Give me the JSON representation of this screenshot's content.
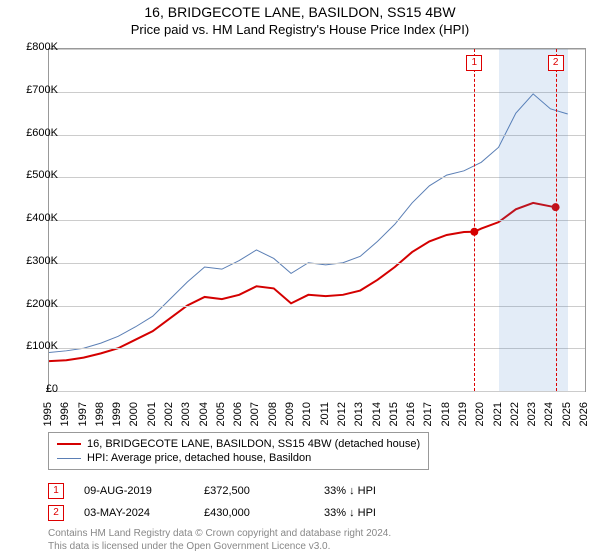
{
  "title_line1": "16, BRIDGECOTE LANE, BASILDON, SS15 4BW",
  "title_line2": "Price paid vs. HM Land Registry's House Price Index (HPI)",
  "chart": {
    "type": "line",
    "x_years": [
      1995,
      1996,
      1997,
      1998,
      1999,
      2000,
      2001,
      2002,
      2003,
      2004,
      2005,
      2006,
      2007,
      2008,
      2009,
      2010,
      2011,
      2012,
      2013,
      2014,
      2015,
      2016,
      2017,
      2018,
      2019,
      2020,
      2021,
      2022,
      2023,
      2024,
      2025,
      2026
    ],
    "ylim": [
      0,
      800000
    ],
    "ytick_step": 100000,
    "ytick_labels": [
      "£0",
      "£100K",
      "£200K",
      "£300K",
      "£400K",
      "£500K",
      "£600K",
      "£700K",
      "£800K"
    ],
    "background_color": "#ffffff",
    "grid_color": "#cccccc",
    "axis_color": "#999999",
    "label_fontsize": 11,
    "title_fontsize": 14,
    "band": {
      "start": 2021,
      "end": 2025,
      "color": "rgba(70,130,200,0.15)"
    },
    "markers": [
      {
        "id": "1",
        "year": 2019.6
      },
      {
        "id": "2",
        "year": 2024.3
      }
    ],
    "series": [
      {
        "name": "price_paid",
        "color": "#d40000",
        "width": 2,
        "legend": "16, BRIDGECOTE LANE, BASILDON, SS15 4BW (detached house)",
        "points": [
          [
            1995,
            70000
          ],
          [
            1996,
            72000
          ],
          [
            1997,
            78000
          ],
          [
            1998,
            88000
          ],
          [
            1999,
            100000
          ],
          [
            2000,
            120000
          ],
          [
            2001,
            140000
          ],
          [
            2002,
            170000
          ],
          [
            2003,
            200000
          ],
          [
            2004,
            220000
          ],
          [
            2005,
            215000
          ],
          [
            2006,
            225000
          ],
          [
            2007,
            245000
          ],
          [
            2008,
            240000
          ],
          [
            2009,
            205000
          ],
          [
            2010,
            225000
          ],
          [
            2011,
            222000
          ],
          [
            2012,
            225000
          ],
          [
            2013,
            235000
          ],
          [
            2014,
            260000
          ],
          [
            2015,
            290000
          ],
          [
            2016,
            325000
          ],
          [
            2017,
            350000
          ],
          [
            2018,
            365000
          ],
          [
            2019,
            372000
          ],
          [
            2019.6,
            372500
          ],
          [
            2020,
            380000
          ],
          [
            2021,
            395000
          ],
          [
            2022,
            425000
          ],
          [
            2023,
            440000
          ],
          [
            2024,
            432000
          ],
          [
            2024.3,
            430000
          ]
        ],
        "highlight_points": [
          {
            "x": 2019.6,
            "y": 372500
          },
          {
            "x": 2024.3,
            "y": 430000
          }
        ]
      },
      {
        "name": "hpi",
        "color": "#5b7fb5",
        "width": 1,
        "legend": "HPI: Average price, detached house, Basildon",
        "points": [
          [
            1995,
            90000
          ],
          [
            1996,
            94000
          ],
          [
            1997,
            100000
          ],
          [
            1998,
            112000
          ],
          [
            1999,
            128000
          ],
          [
            2000,
            150000
          ],
          [
            2001,
            175000
          ],
          [
            2002,
            215000
          ],
          [
            2003,
            255000
          ],
          [
            2004,
            290000
          ],
          [
            2005,
            285000
          ],
          [
            2006,
            305000
          ],
          [
            2007,
            330000
          ],
          [
            2008,
            310000
          ],
          [
            2009,
            275000
          ],
          [
            2010,
            300000
          ],
          [
            2011,
            295000
          ],
          [
            2012,
            300000
          ],
          [
            2013,
            315000
          ],
          [
            2014,
            350000
          ],
          [
            2015,
            390000
          ],
          [
            2016,
            440000
          ],
          [
            2017,
            480000
          ],
          [
            2018,
            505000
          ],
          [
            2019,
            515000
          ],
          [
            2020,
            535000
          ],
          [
            2021,
            570000
          ],
          [
            2022,
            650000
          ],
          [
            2023,
            695000
          ],
          [
            2024,
            660000
          ],
          [
            2025,
            648000
          ]
        ]
      }
    ]
  },
  "sales": [
    {
      "id": "1",
      "date": "09-AUG-2019",
      "price": "£372,500",
      "pct": "33% ↓ HPI"
    },
    {
      "id": "2",
      "date": "03-MAY-2024",
      "price": "£430,000",
      "pct": "33% ↓ HPI"
    }
  ],
  "footer_line1": "Contains HM Land Registry data © Crown copyright and database right 2024.",
  "footer_line2": "This data is licensed under the Open Government Licence v3.0."
}
